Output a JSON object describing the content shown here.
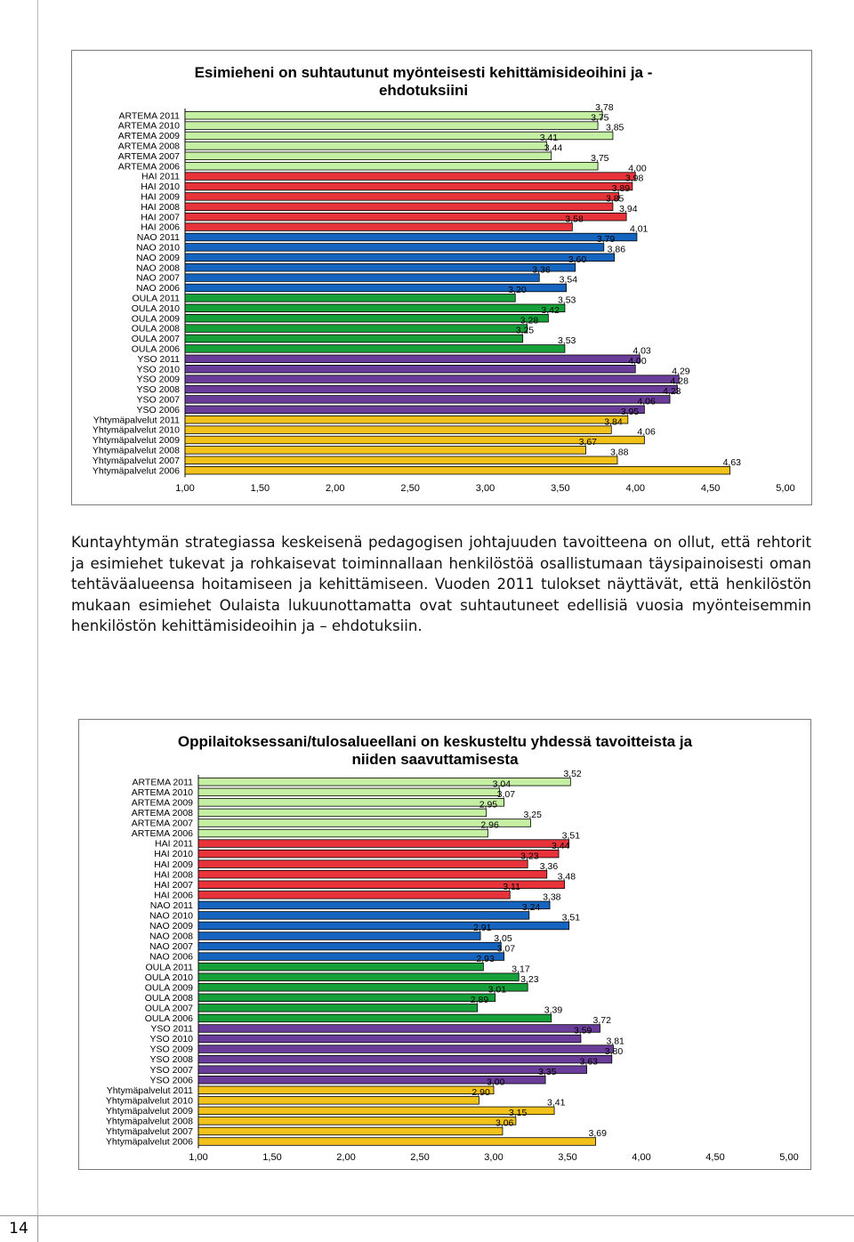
{
  "chart_data": [
    {
      "type": "bar",
      "title": "Esimieheni on suhtautunut myönteisesti kehittämisideoihini ja -ehdotuksiini",
      "title_lines": [
        "Esimieheni on suhtautunut myönteisesti kehittämisideoihini ja -",
        "ehdotuksiini"
      ],
      "orientation": "horizontal",
      "xlim": [
        1.0,
        5.0
      ],
      "x_ticks": [
        "1,00",
        "1,50",
        "2,00",
        "2,50",
        "3,00",
        "3,50",
        "4,00",
        "4,50",
        "5,00"
      ],
      "categories": [
        "ARTEMA 2011",
        "ARTEMA 2010",
        "ARTEMA 2009",
        "ARTEMA 2008",
        "ARTEMA 2007",
        "ARTEMA 2006",
        "HAI  2011",
        "HAI  2010",
        "HAI  2009",
        "HAI  2008",
        "HAI  2007",
        "HAI  2006",
        "NAO 2011",
        "NAO 2010",
        "NAO 2009",
        "NAO 2008",
        "NAO 2007",
        "NAO 2006",
        "OULA 2011",
        "OULA 2010",
        "OULA 2009",
        "OULA 2008",
        "OULA 2007",
        "OULA 2006",
        "YSO 2011",
        "YSO 2010",
        "YSO 2009",
        "YSO 2008",
        "YSO 2007",
        "YSO 2006",
        "Yhtymäpalvelut 2011",
        "Yhtymäpalvelut 2010",
        "Yhtymäpalvelut 2009",
        "Yhtymäpalvelut 2008",
        "Yhtymäpalvelut 2007",
        "Yhtymäpalvelut 2006"
      ],
      "values": [
        3.78,
        3.75,
        3.85,
        3.41,
        3.44,
        3.75,
        4.0,
        3.98,
        3.89,
        3.85,
        3.94,
        3.58,
        4.01,
        3.79,
        3.86,
        3.6,
        3.36,
        3.54,
        3.2,
        3.53,
        3.42,
        3.28,
        3.25,
        3.53,
        4.03,
        4.0,
        4.29,
        4.28,
        4.23,
        4.06,
        3.95,
        3.84,
        4.06,
        3.67,
        3.88,
        4.63
      ],
      "value_labels": [
        "3,78",
        "3,75",
        "3,85",
        "3,41",
        "3,44",
        "3,75",
        "4,00",
        "3,98",
        "3,89",
        "3,85",
        "3,94",
        "3,58",
        "4,01",
        "3,79",
        "3,86",
        "3,60",
        "3,36",
        "3,54",
        "3,20",
        "3,53",
        "3,42",
        "3,28",
        "3,25",
        "3,53",
        "4,03",
        "4,00",
        "4,29",
        "4,28",
        "4,23",
        "4,06",
        "3,95",
        "3,84",
        "4,06",
        "3,67",
        "3,88",
        "4,63"
      ],
      "grid": false
    },
    {
      "type": "bar",
      "title": "Oppilaitoksessani/tulosalueellani on keskusteltu yhdessä tavoitteista ja niiden saavuttamisesta",
      "title_lines": [
        "Oppilaitoksessani/tulosalueellani on keskusteltu yhdessä tavoitteista ja",
        "niiden saavuttamisesta"
      ],
      "orientation": "horizontal",
      "xlim": [
        1.0,
        5.0
      ],
      "x_ticks": [
        "1,00",
        "1,50",
        "2,00",
        "2,50",
        "3,00",
        "3,50",
        "4,00",
        "4,50",
        "5,00"
      ],
      "categories": [
        "ARTEMA 2011",
        "ARTEMA 2010",
        "ARTEMA 2009",
        "ARTEMA 2008",
        "ARTEMA 2007",
        "ARTEMA 2006",
        "HAI  2011",
        "HAI  2010",
        "HAI  2009",
        "HAI  2008",
        "HAI  2007",
        "HAI  2006",
        "NAO 2011",
        "NAO 2010",
        "NAO 2009",
        "NAO 2008",
        "NAO 2007",
        "NAO 2006",
        "OULA 2011",
        "OULA 2010",
        "OULA 2009",
        "OULA 2008",
        "OULA 2007",
        "OULA 2006",
        "YSO 2011",
        "YSO 2010",
        "YSO 2009",
        "YSO 2008",
        "YSO 2007",
        "YSO 2006",
        "Yhtymäpalvelut 2011",
        "Yhtymäpalvelut 2010",
        "Yhtymäpalvelut 2009",
        "Yhtymäpalvelut 2008",
        "Yhtymäpalvelut 2007",
        "Yhtymäpalvelut 2006"
      ],
      "values": [
        3.52,
        3.04,
        3.07,
        2.95,
        3.25,
        2.96,
        3.51,
        3.44,
        3.23,
        3.36,
        3.48,
        3.11,
        3.38,
        3.24,
        3.51,
        2.91,
        3.05,
        3.07,
        2.93,
        3.17,
        3.23,
        3.01,
        2.89,
        3.39,
        3.72,
        3.59,
        3.81,
        3.8,
        3.63,
        3.35,
        3.0,
        2.9,
        3.41,
        3.15,
        3.06,
        3.69
      ],
      "value_labels": [
        "3,52",
        "3,04",
        "3,07",
        "2,95",
        "3,25",
        "2,96",
        "3,51",
        "3,44",
        "3,23",
        "3,36",
        "3,48",
        "3,11",
        "3,38",
        "3,24",
        "3,51",
        "2,91",
        "3,05",
        "3,07",
        "2,93",
        "3,17",
        "3,23",
        "3,01",
        "2,89",
        "3,39",
        "3,72",
        "3,59",
        "3,81",
        "3,80",
        "3,63",
        "3,35",
        "3,00",
        "2,90",
        "3,41",
        "3,15",
        "3,06",
        "3,69"
      ],
      "grid": false
    }
  ],
  "colors": {
    "ARTEMA": "#c5f0a4",
    "HAI": "#e8333b",
    "NAO": "#1565c0",
    "OULA": "#16a03a",
    "YSO": "#6a3d9a",
    "Yhtymäpalvelut": "#f2c21b",
    "bar_outline": "#000000"
  },
  "paragraph": "Kuntayhtymän strategiassa keskeisenä pedagogisen johtajuuden tavoitteena on ollut, että rehtorit ja esimiehet tukevat ja rohkaisevat toiminnallaan henkilöstöä osallistumaan täysipainoisesti oman tehtäväalueensa hoitamiseen ja kehittämiseen. Vuoden 2011 tulokset näyttävät, että henkilöstön mukaan esimiehet Oulaista lukuunottamatta ovat suhtautuneet edellisiä vuosia myönteisemmin henkilöstön kehittämisideoihin ja – ehdotuksiin.",
  "page_number": "14"
}
